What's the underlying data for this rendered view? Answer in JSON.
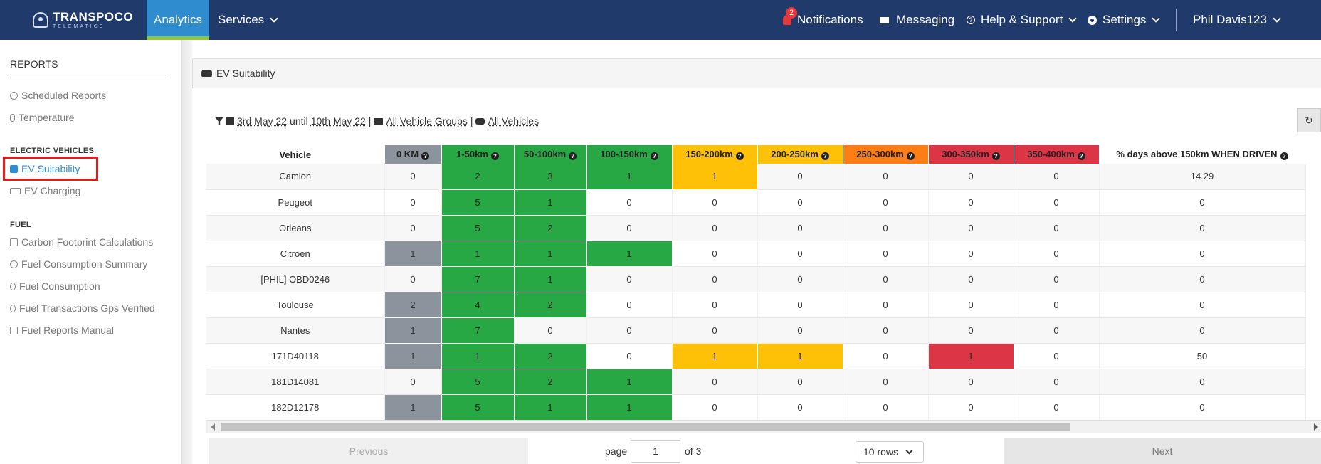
{
  "nav": {
    "logo_brand": "TRANSPOCO",
    "logo_sub": "TELEMATICS",
    "analytics": "Analytics",
    "services": "Services",
    "notifications": "Notifications",
    "notifications_badge": "2",
    "messaging": "Messaging",
    "help": "Help & Support",
    "settings": "Settings",
    "user": "Phil Davis123",
    "accent": "#2f8ccf"
  },
  "sidebar": {
    "reports_title": "REPORTS",
    "reports": [
      "Scheduled Reports",
      "Temperature"
    ],
    "ev_title": "ELECTRIC VEHICLES",
    "ev_items": [
      "EV Suitability",
      "EV Charging"
    ],
    "fuel_title": "FUEL",
    "fuel_items": [
      "Carbon Footprint Calculations",
      "Fuel Consumption Summary",
      "Fuel Consumption",
      "Fuel Transactions Gps Verified",
      "Fuel Reports Manual"
    ]
  },
  "panel": {
    "title": "EV Suitability",
    "filter_from": "3rd May 22",
    "filter_until": "until",
    "filter_to": "10th May 22",
    "filter_groups": "All Vehicle Groups",
    "filter_vehicles": "All Vehicles"
  },
  "table": {
    "columns": [
      "Vehicle",
      "0 KM",
      "1-50km",
      "50-100km",
      "100-150km",
      "150-200km",
      "200-250km",
      "250-300km",
      "300-350km",
      "350-400km",
      "% days above 150km WHEN DRIVEN"
    ],
    "header_colors": [
      "#ffffff",
      "#8c939c",
      "#28a745",
      "#28a745",
      "#28a745",
      "#ffc107",
      "#ffc107",
      "#fd7e14",
      "#dc3545",
      "#dc3545",
      "#ffffff"
    ],
    "rows": [
      {
        "vehicle": "Camion",
        "values": [
          "0",
          "2",
          "3",
          "1",
          "1",
          "0",
          "0",
          "0",
          "0",
          "14.29"
        ]
      },
      {
        "vehicle": "Peugeot",
        "values": [
          "0",
          "5",
          "1",
          "0",
          "0",
          "0",
          "0",
          "0",
          "0",
          "0"
        ]
      },
      {
        "vehicle": "Orleans",
        "values": [
          "0",
          "5",
          "2",
          "0",
          "0",
          "0",
          "0",
          "0",
          "0",
          "0"
        ]
      },
      {
        "vehicle": "Citroen",
        "values": [
          "1",
          "1",
          "1",
          "1",
          "0",
          "0",
          "0",
          "0",
          "0",
          "0"
        ]
      },
      {
        "vehicle": "[PHIL] OBD0246",
        "values": [
          "0",
          "7",
          "1",
          "0",
          "0",
          "0",
          "0",
          "0",
          "0",
          "0"
        ]
      },
      {
        "vehicle": "Toulouse",
        "values": [
          "2",
          "4",
          "2",
          "0",
          "0",
          "0",
          "0",
          "0",
          "0",
          "0"
        ]
      },
      {
        "vehicle": "Nantes",
        "values": [
          "1",
          "7",
          "0",
          "0",
          "0",
          "0",
          "0",
          "0",
          "0",
          "0"
        ]
      },
      {
        "vehicle": "171D40118",
        "values": [
          "1",
          "1",
          "2",
          "0",
          "1",
          "1",
          "0",
          "1",
          "0",
          "50"
        ]
      },
      {
        "vehicle": "181D14081",
        "values": [
          "0",
          "5",
          "2",
          "1",
          "0",
          "0",
          "0",
          "0",
          "0",
          "0"
        ]
      },
      {
        "vehicle": "182D12178",
        "values": [
          "1",
          "5",
          "1",
          "1",
          "0",
          "0",
          "0",
          "0",
          "0",
          "0"
        ]
      }
    ]
  },
  "pager": {
    "previous": "Previous",
    "page_label": "page",
    "page_value": "1",
    "of_label": "of 3",
    "rows_label": "10 rows",
    "next": "Next"
  }
}
